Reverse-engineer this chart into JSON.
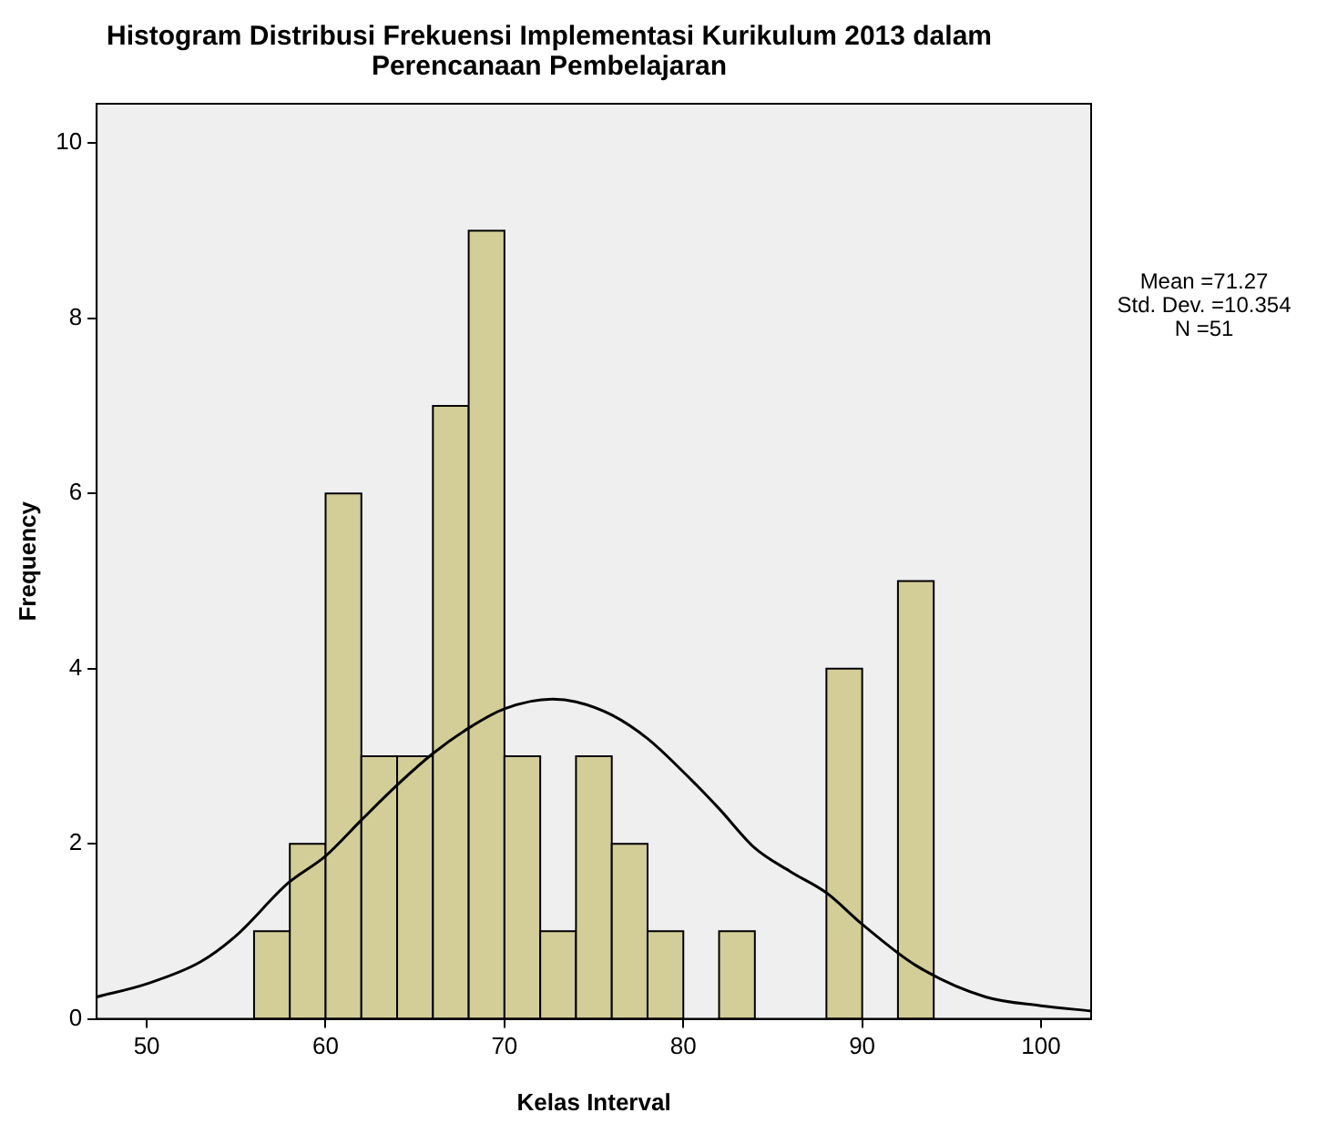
{
  "chart_data": {
    "type": "histogram",
    "title": "Histogram Distribusi Frekuensi Implementasi Kurikulum 2013 dalam Perencanaan Pembelajaran",
    "xlabel": "Kelas Interval",
    "ylabel": "Frequency",
    "bins": [
      56,
      58,
      60,
      62,
      64,
      66,
      68,
      70,
      72,
      74,
      76,
      78,
      80,
      82,
      84,
      86,
      88,
      90,
      92,
      94
    ],
    "values": [
      1,
      2,
      6,
      3,
      3,
      7,
      9,
      3,
      1,
      3,
      2,
      1,
      0,
      1,
      0,
      0,
      4,
      0,
      5
    ],
    "color": "#d3ce97",
    "series": [
      {
        "type": "line",
        "color": "#000000",
        "x": [
          47.2,
          50,
          53,
          55,
          57.9,
          60,
          62,
          64,
          66,
          68,
          70,
          72.7,
          74,
          76,
          78,
          80,
          82,
          84,
          86,
          88,
          90,
          93,
          96.9,
          100,
          102.8
        ],
        "values": [
          0.25,
          0.4,
          0.65,
          0.95,
          1.55,
          1.86,
          2.27,
          2.67,
          3.03,
          3.32,
          3.54,
          3.65,
          3.62,
          3.47,
          3.2,
          2.82,
          2.4,
          1.95,
          1.68,
          1.44,
          1.08,
          0.61,
          0.25,
          0.15,
          0.09
        ]
      }
    ],
    "xlim": [
      47.2,
      102.8
    ],
    "xticks": [
      50,
      60,
      70,
      80,
      90,
      100
    ],
    "ylim": [
      0,
      10.45
    ],
    "yticks": [
      0,
      2,
      4,
      6,
      8,
      10
    ],
    "grid": false,
    "legend": false,
    "marker": "none",
    "line_style": "solid",
    "annotations": [
      "Mean =71.27",
      "Std. Dev. =10.354",
      "N =51"
    ]
  }
}
